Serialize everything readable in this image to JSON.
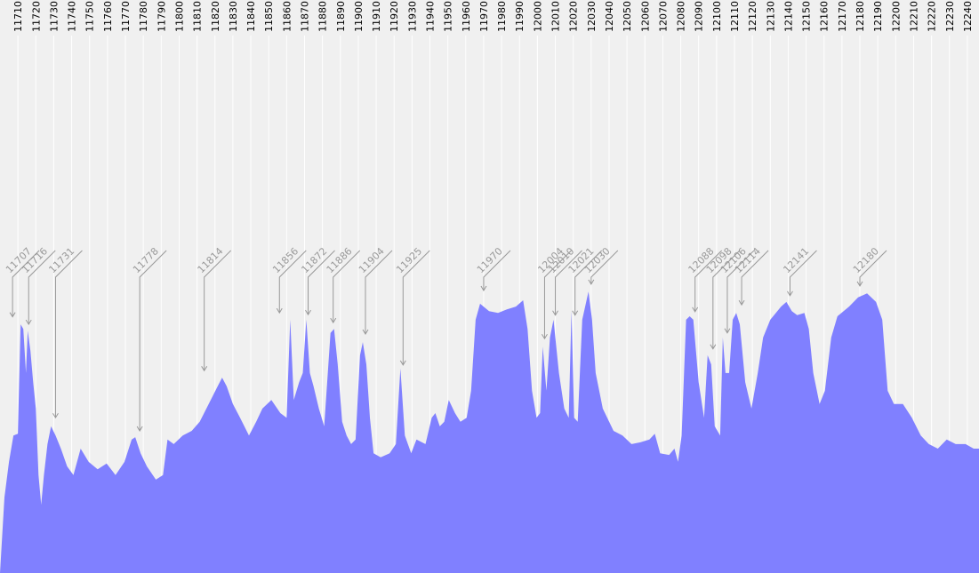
{
  "chart_data": {
    "type": "area",
    "color": "#8080ff",
    "annotation_color": "#999999",
    "grid": true,
    "xlim": [
      11700,
      12246.5
    ],
    "ylim": [
      0,
      100
    ],
    "xticks": [
      11710,
      11720,
      11730,
      11740,
      11750,
      11760,
      11770,
      11780,
      11790,
      11800,
      11810,
      11820,
      11830,
      11840,
      11850,
      11860,
      11870,
      11880,
      11890,
      11900,
      11910,
      11920,
      11930,
      11940,
      11950,
      11960,
      11970,
      11980,
      11990,
      12000,
      12010,
      12020,
      12030,
      12040,
      12050,
      12060,
      12070,
      12080,
      12090,
      12100,
      12110,
      12120,
      12130,
      12140,
      12150,
      12160,
      12170,
      12180,
      12190,
      12200,
      12210,
      12220,
      12230,
      12240
    ],
    "x": [
      11700,
      11702.5,
      11705,
      11707.5,
      11710,
      11711.5,
      11713,
      11714.5,
      11715.5,
      11717,
      11718.5,
      11720,
      11721.5,
      11723,
      11724.5,
      11726.5,
      11728.5,
      11731,
      11734,
      11737.5,
      11741,
      11745,
      11749.5,
      11754.5,
      11759.5,
      11764.5,
      11769.5,
      11773.5,
      11775.5,
      11778.5,
      11782,
      11787,
      11791,
      11793.5,
      11797,
      11802,
      11807,
      11811.5,
      11816.5,
      11821.5,
      11824,
      11826.5,
      11830,
      11834,
      11839,
      11843,
      11846.5,
      11851.5,
      11856.5,
      11860,
      11862,
      11864,
      11867,
      11869,
      11871,
      11873,
      11875,
      11878,
      11881,
      11884.5,
      11886.5,
      11888.5,
      11891,
      11893.5,
      11896,
      11898.5,
      11901,
      11902.5,
      11904.5,
      11906.5,
      11908.5,
      11912.5,
      11917.5,
      11921,
      11923.5,
      11926,
      11929.5,
      11932.5,
      11937.5,
      11941,
      11943,
      11945.5,
      11948,
      11950.5,
      11954,
      11957,
      11960.5,
      11963,
      11965.5,
      11968,
      11973,
      11978,
      11983,
      11988,
      11992,
      11994.5,
      11997,
      11999.5,
      12001.5,
      12003,
      12005,
      12007,
      12009,
      12012,
      12015,
      12017.5,
      12019,
      12020.5,
      12022.5,
      12025,
      12028.5,
      12030.5,
      12032.5,
      12036.5,
      12042.5,
      12047.5,
      12052.5,
      12057.5,
      12062.5,
      12065.5,
      12068.5,
      12073.5,
      12076.5,
      12078.5,
      12080.5,
      12083,
      12085,
      12087,
      12090,
      12093,
      12095,
      12097,
      12099,
      12102,
      12103.5,
      12105,
      12107,
      12109,
      12111,
      12113,
      12116,
      12119.5,
      12123,
      12126,
      12130,
      12136,
      12139,
      12142,
      12145,
      12149,
      12151.5,
      12154,
      12157.5,
      12160.5,
      12164,
      12167.5,
      12174,
      12179,
      12184,
      12189,
      12192.5,
      12195.5,
      12199,
      12204,
      12209,
      12214,
      12218.5,
      12223.5,
      12228.5,
      12233.5,
      12239,
      12243.5,
      12246.5
    ],
    "values": [
      0,
      13.2,
      19.4,
      24.0,
      24.3,
      43.4,
      42.6,
      34.9,
      42.3,
      38.8,
      33.3,
      28.7,
      17.1,
      11.9,
      17.1,
      22.5,
      25.6,
      24.0,
      21.7,
      18.6,
      17.1,
      21.7,
      19.4,
      18.1,
      19.1,
      17.1,
      19.4,
      23.3,
      23.7,
      20.9,
      18.6,
      16.3,
      17.1,
      23.3,
      22.5,
      24.0,
      24.8,
      26.4,
      29.5,
      32.6,
      34.1,
      32.6,
      29.5,
      27.1,
      24.0,
      26.4,
      28.7,
      30.2,
      27.9,
      27.1,
      44.2,
      30.2,
      33.3,
      34.9,
      44.2,
      34.9,
      32.6,
      28.7,
      25.6,
      41.9,
      42.6,
      36.4,
      26.4,
      24.0,
      22.5,
      23.3,
      38.0,
      40.3,
      36.4,
      27.1,
      20.9,
      20.2,
      20.9,
      22.5,
      35.7,
      24.0,
      20.9,
      23.3,
      22.5,
      27.1,
      27.9,
      25.6,
      26.4,
      30.2,
      27.9,
      26.4,
      27.1,
      31.8,
      44.2,
      47.0,
      45.7,
      45.4,
      46.0,
      46.5,
      47.6,
      42.6,
      31.8,
      27.1,
      27.9,
      39.5,
      31.8,
      41.1,
      44.2,
      34.9,
      28.7,
      27.1,
      45.7,
      27.1,
      26.4,
      44.2,
      49.1,
      44.2,
      34.9,
      28.7,
      24.8,
      24.0,
      22.5,
      22.8,
      23.3,
      24.3,
      20.9,
      20.6,
      21.7,
      19.4,
      24.0,
      44.2,
      44.8,
      44.2,
      33.3,
      27.1,
      38.0,
      36.4,
      25.6,
      24.0,
      41.1,
      34.9,
      34.9,
      44.2,
      45.4,
      43.4,
      33.3,
      28.7,
      34.9,
      41.1,
      44.2,
      46.5,
      47.3,
      45.7,
      45.0,
      45.4,
      42.6,
      34.9,
      29.5,
      31.8,
      41.1,
      44.8,
      46.5,
      48.1,
      48.8,
      47.3,
      44.2,
      31.8,
      29.5,
      29.5,
      27.1,
      24.0,
      22.5,
      21.7,
      23.3,
      22.5,
      22.5,
      21.7,
      21.7
    ],
    "annotations": [
      {
        "x": 11707,
        "y": 44.7
      },
      {
        "x": 11716,
        "y": 43.4
      },
      {
        "x": 11731,
        "y": 27.1
      },
      {
        "x": 11778,
        "y": 24.8
      },
      {
        "x": 11814,
        "y": 35.3
      },
      {
        "x": 11856,
        "y": 45.4
      },
      {
        "x": 11872,
        "y": 45.1
      },
      {
        "x": 11886,
        "y": 43.7
      },
      {
        "x": 11904,
        "y": 41.7
      },
      {
        "x": 11925,
        "y": 36.3
      },
      {
        "x": 11970,
        "y": 49.3
      },
      {
        "x": 12004,
        "y": 40.9
      },
      {
        "x": 12010,
        "y": 45.0
      },
      {
        "x": 12021,
        "y": 45.0
      },
      {
        "x": 12030,
        "y": 50.4
      },
      {
        "x": 12088,
        "y": 45.6
      },
      {
        "x": 12098,
        "y": 39.1
      },
      {
        "x": 12106,
        "y": 41.9
      },
      {
        "x": 12114,
        "y": 46.8
      },
      {
        "x": 12141,
        "y": 48.4
      },
      {
        "x": 12180,
        "y": 50.1
      }
    ]
  }
}
